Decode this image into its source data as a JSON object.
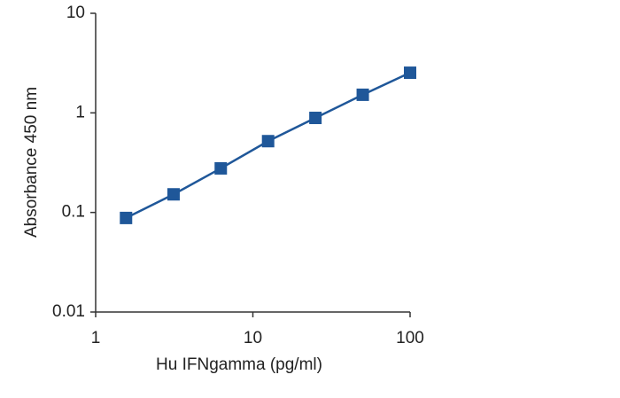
{
  "chart_data": {
    "type": "line",
    "xlabel": "Hu IFNgamma (pg/ml)",
    "ylabel": "Absorbance 450 nm",
    "x": [
      1.56,
      3.13,
      6.25,
      12.5,
      25,
      50,
      100
    ],
    "series": [
      {
        "color": "#1f5799",
        "marker": "square",
        "values": [
          0.088,
          0.152,
          0.277,
          0.52,
          0.89,
          1.52,
          2.53
        ]
      }
    ],
    "xscale": "log",
    "yscale": "log",
    "xlim": [
      1,
      100
    ],
    "ylim": [
      0.01,
      10
    ],
    "xticks": [
      1,
      10,
      100
    ],
    "yticks": [
      0.01,
      0.1,
      1,
      10
    ],
    "grid": false
  }
}
